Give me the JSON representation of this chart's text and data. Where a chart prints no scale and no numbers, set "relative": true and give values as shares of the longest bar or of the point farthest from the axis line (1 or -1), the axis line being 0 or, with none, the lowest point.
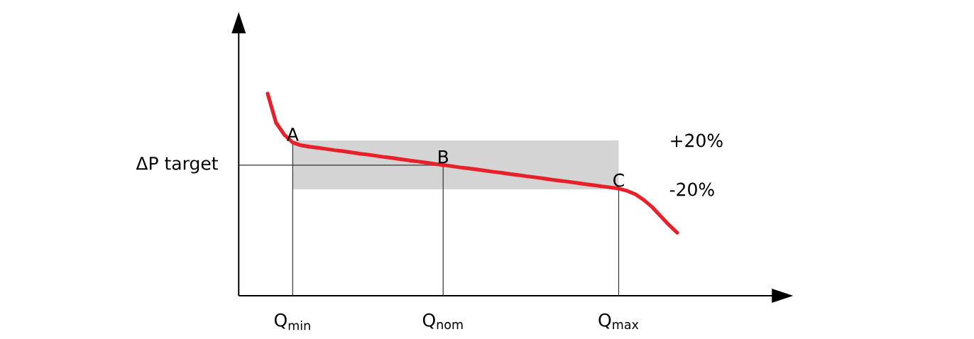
{
  "chart_data": {
    "type": "line",
    "relative": true,
    "marker": "none",
    "categories": [
      null,
      null,
      null,
      "Q$_{min}$",
      null,
      null,
      null,
      null,
      null,
      null,
      null,
      null,
      null,
      null,
      null,
      null,
      null,
      null,
      null,
      null,
      null,
      "Q$_{nom}$",
      null,
      null,
      null,
      null,
      null,
      null,
      null,
      null,
      null,
      null,
      null,
      null,
      null,
      null,
      null,
      null,
      null,
      null,
      null,
      null,
      "Q$_{max}$",
      null,
      null,
      null,
      null,
      null,
      null,
      null
    ],
    "series": [
      {
        "color": "#e8202a",
        "values": [
          1.0,
          0.856,
          0.796,
          0.758,
          0.744,
          0.737,
          0.732,
          0.726,
          0.72,
          0.715,
          0.709,
          0.703,
          0.698,
          0.692,
          0.686,
          0.681,
          0.675,
          0.669,
          0.664,
          0.658,
          0.652,
          0.647,
          0.641,
          0.635,
          0.63,
          0.625,
          0.619,
          0.613,
          0.608,
          0.602,
          0.597,
          0.591,
          0.586,
          0.58,
          0.574,
          0.569,
          0.564,
          0.558,
          0.552,
          0.547,
          0.541,
          0.536,
          0.53,
          0.519,
          0.502,
          0.474,
          0.439,
          0.395,
          0.351,
          0.312
        ]
      }
    ],
    "ref_lines": [
      {
        "axis": "y",
        "value": 0.646,
        "label": "ΔP target",
        "color": "#333333"
      },
      {
        "axis": "x",
        "value": "Q$_{min}$",
        "color": "#333333"
      },
      {
        "axis": "x",
        "value": "Q$_{nom}$",
        "color": "#333333"
      },
      {
        "axis": "x",
        "value": "Q$_{max}$",
        "color": "#333333"
      }
    ],
    "bands": [
      {
        "axis": "y",
        "from": 0.526,
        "to": 0.768,
        "color": "#d4d4d4"
      }
    ],
    "annotations": [
      {
        "text": "A",
        "x": "Q$_{min}$",
        "y": 0.758
      },
      {
        "text": "B",
        "x": "Q$_{nom}$",
        "y": 0.647
      },
      {
        "text": "C",
        "x": "Q$_{max}$",
        "y": 0.53
      },
      "+20%",
      "-20%"
    ]
  }
}
